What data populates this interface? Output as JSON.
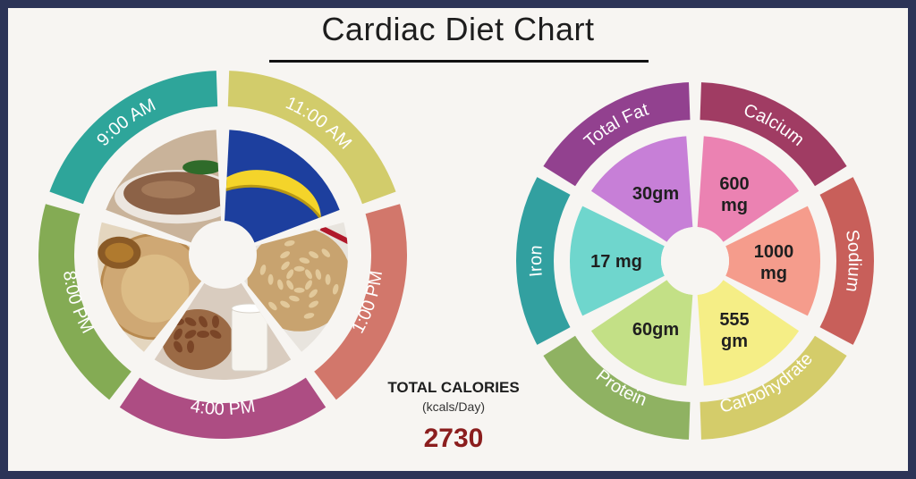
{
  "title": "Cardiac Diet Chart",
  "total_calories": {
    "label": "TOTAL CALORIES",
    "unit": "(kcals/Day)",
    "value": "2730"
  },
  "meal_times": [
    {
      "time": "9:00 AM",
      "color": "#2ea59a",
      "food": "porridge-icon"
    },
    {
      "time": "11:00 AM",
      "color": "#d2cc6b",
      "food": "banana-icon"
    },
    {
      "time": "1:00 PM",
      "color": "#d2776b",
      "food": "rice-icon"
    },
    {
      "time": "4:00 PM",
      "color": "#ad4d83",
      "food": "almonds-milk-icon"
    },
    {
      "time": "8:00 PM",
      "color": "#84ab54",
      "food": "flatbread-icon"
    }
  ],
  "nutrients": [
    {
      "name": "Total Fat",
      "value": "30gm",
      "ring_color": "#92418f",
      "fill": "#c77fd7"
    },
    {
      "name": "Calcium",
      "value": "600\nmg",
      "ring_color": "#a03c63",
      "fill": "#eb82b2"
    },
    {
      "name": "Sodium",
      "value": "1000\nmg",
      "ring_color": "#c85f5a",
      "fill": "#f59c8c"
    },
    {
      "name": "Carbohydrate",
      "value": "555\ngm",
      "ring_color": "#d4cc6a",
      "fill": "#f5ee86"
    },
    {
      "name": "Protein",
      "value": "60gm",
      "ring_color": "#8fb262",
      "fill": "#c3e086"
    },
    {
      "name": "Iron",
      "value": "17 mg",
      "ring_color": "#32a0a0",
      "fill": "#6fd6cd"
    }
  ]
}
